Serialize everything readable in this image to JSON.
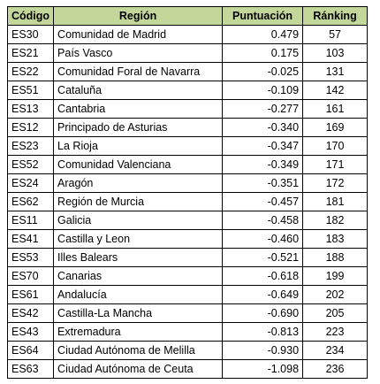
{
  "table": {
    "headers": {
      "code": "Código",
      "region": "Región",
      "score": "Puntuación",
      "rank": "Ránking"
    },
    "rows": [
      {
        "code": "ES30",
        "region": "Comunidad de Madrid",
        "score": "0.479",
        "rank": "57"
      },
      {
        "code": "ES21",
        "region": "País Vasco",
        "score": "0.175",
        "rank": "103"
      },
      {
        "code": "ES22",
        "region": "Comunidad Foral de Navarra",
        "score": "-0.025",
        "rank": "131"
      },
      {
        "code": "ES51",
        "region": "Cataluña",
        "score": "-0.109",
        "rank": "142"
      },
      {
        "code": "ES13",
        "region": "Cantabria",
        "score": "-0.277",
        "rank": "161"
      },
      {
        "code": "ES12",
        "region": "Principado de Asturias",
        "score": "-0.340",
        "rank": "169"
      },
      {
        "code": "ES23",
        "region": "La Rioja",
        "score": "-0.347",
        "rank": "170"
      },
      {
        "code": "ES52",
        "region": "Comunidad Valenciana",
        "score": "-0.349",
        "rank": "171"
      },
      {
        "code": "ES24",
        "region": "Aragón",
        "score": "-0.351",
        "rank": "172"
      },
      {
        "code": "ES62",
        "region": "Región de Murcia",
        "score": "-0.457",
        "rank": "181"
      },
      {
        "code": "ES11",
        "region": "Galicia",
        "score": "-0.458",
        "rank": "182"
      },
      {
        "code": "ES41",
        "region": "Castilla y Leon",
        "score": "-0.460",
        "rank": "183"
      },
      {
        "code": "ES53",
        "region": "Illes Balears",
        "score": "-0.521",
        "rank": "188"
      },
      {
        "code": "ES70",
        "region": "Canarias",
        "score": "-0.618",
        "rank": "199"
      },
      {
        "code": "ES61",
        "region": "Andalucía",
        "score": "-0.649",
        "rank": "202"
      },
      {
        "code": "ES42",
        "region": "Castilla-La Mancha",
        "score": "-0.690",
        "rank": "205"
      },
      {
        "code": "ES43",
        "region": "Extremadura",
        "score": "-0.813",
        "rank": "223"
      },
      {
        "code": "ES64",
        "region": "Ciudad Autónoma de Melilla",
        "score": "-0.930",
        "rank": "234"
      },
      {
        "code": "ES63",
        "region": "Ciudad Autónoma de Ceuta",
        "score": "-1.098",
        "rank": "236"
      }
    ]
  },
  "colors": {
    "header_background": "#c4d79b",
    "border": "#000000"
  }
}
